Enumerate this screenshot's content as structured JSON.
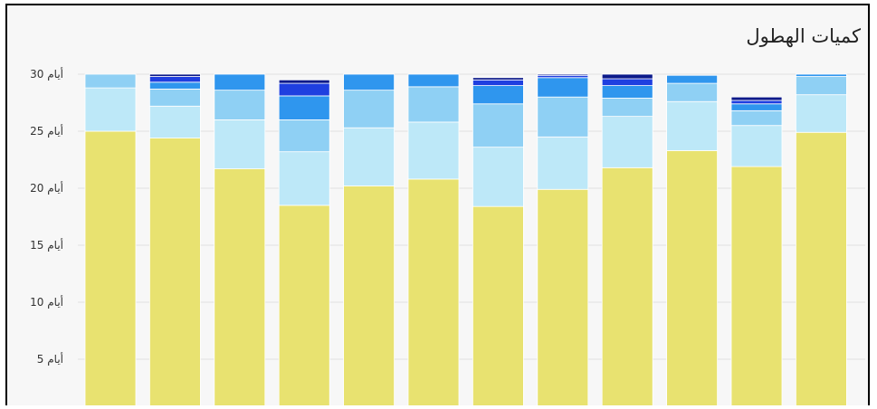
{
  "chart_data": {
    "type": "bar",
    "stacked": true,
    "title": "كميات الهطول",
    "y_unit": "أيام",
    "yticks": [
      5,
      10,
      15,
      20,
      25,
      30
    ],
    "ylim": [
      0,
      30
    ],
    "grid": true,
    "categories": [
      "",
      "",
      "",
      "",
      "",
      "",
      "",
      "",
      "",
      "",
      "",
      ""
    ],
    "series": [
      {
        "color": "#e8e270",
        "values": [
          25,
          24.4,
          21.7,
          18.5,
          20.2,
          20.8,
          18.4,
          19.9,
          21.8,
          23.3,
          21.9,
          24.9
        ]
      },
      {
        "color": "#bde8f8",
        "values": [
          3.8,
          2.8,
          4.3,
          4.7,
          5.1,
          5.0,
          5.2,
          4.6,
          4.5,
          4.3,
          3.6,
          3.3
        ]
      },
      {
        "color": "#8fd0f4",
        "values": [
          1.2,
          1.5,
          2.6,
          2.8,
          3.3,
          3.1,
          3.8,
          3.5,
          1.6,
          1.6,
          1.3,
          1.6
        ]
      },
      {
        "color": "#2f96ee",
        "values": [
          0,
          0.6,
          1.4,
          2.1,
          1.4,
          1.1,
          1.6,
          1.7,
          1.1,
          0.7,
          0.6,
          0.2
        ]
      },
      {
        "color": "#1f3fe0",
        "values": [
          0,
          0.5,
          0,
          1.1,
          0,
          0,
          0.5,
          0.2,
          0.6,
          0,
          0.3,
          0
        ]
      },
      {
        "color": "#0c1a8a",
        "values": [
          0,
          0.2,
          0,
          0.3,
          0,
          0,
          0.2,
          0.1,
          0.4,
          0,
          0.3,
          0
        ]
      }
    ]
  }
}
